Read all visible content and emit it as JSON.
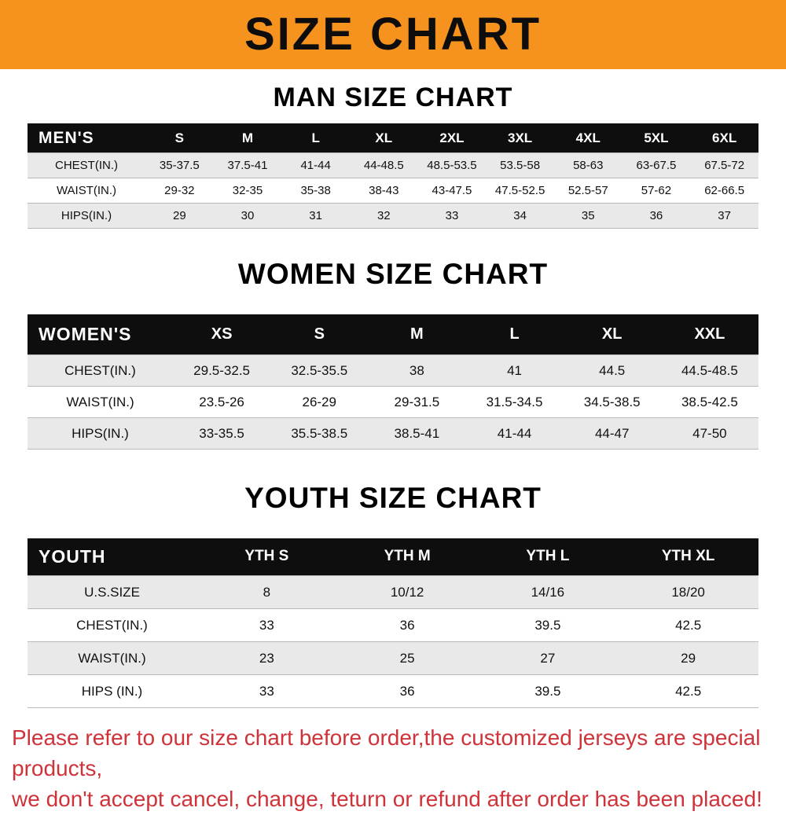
{
  "banner": {
    "title": "SIZE CHART",
    "bg_color": "#f6921e",
    "text_color": "#0d0d0d"
  },
  "sections": [
    {
      "title": "MAN SIZE CHART",
      "header_label": "MEN'S",
      "columns": [
        "S",
        "M",
        "L",
        "XL",
        "2XL",
        "3XL",
        "4XL",
        "5XL",
        "6XL"
      ],
      "rows": [
        {
          "label": "CHEST(IN.)",
          "values": [
            "35-37.5",
            "37.5-41",
            "41-44",
            "44-48.5",
            "48.5-53.5",
            "53.5-58",
            "58-63",
            "63-67.5",
            "67.5-72"
          ]
        },
        {
          "label": "WAIST(IN.)",
          "values": [
            "29-32",
            "32-35",
            "35-38",
            "38-43",
            "43-47.5",
            "47.5-52.5",
            "52.5-57",
            "57-62",
            "62-66.5"
          ]
        },
        {
          "label": "HIPS(IN.)",
          "values": [
            "29",
            "30",
            "31",
            "32",
            "33",
            "34",
            "35",
            "36",
            "37"
          ]
        }
      ]
    },
    {
      "title": "WOMEN SIZE CHART",
      "header_label": "WOMEN'S",
      "columns": [
        "XS",
        "S",
        "M",
        "L",
        "XL",
        "XXL"
      ],
      "rows": [
        {
          "label": "CHEST(IN.)",
          "values": [
            "29.5-32.5",
            "32.5-35.5",
            "38",
            "41",
            "44.5",
            "44.5-48.5"
          ]
        },
        {
          "label": "WAIST(IN.)",
          "values": [
            "23.5-26",
            "26-29",
            "29-31.5",
            "31.5-34.5",
            "34.5-38.5",
            "38.5-42.5"
          ]
        },
        {
          "label": "HIPS(IN.)",
          "values": [
            "33-35.5",
            "35.5-38.5",
            "38.5-41",
            "41-44",
            "44-47",
            "47-50"
          ]
        }
      ]
    },
    {
      "title": "YOUTH SIZE CHART",
      "header_label": "YOUTH",
      "columns": [
        "YTH S",
        "YTH M",
        "YTH L",
        "YTH XL"
      ],
      "rows": [
        {
          "label": "U.S.SIZE",
          "values": [
            "8",
            "10/12",
            "14/16",
            "18/20"
          ]
        },
        {
          "label": "CHEST(IN.)",
          "values": [
            "33",
            "36",
            "39.5",
            "42.5"
          ]
        },
        {
          "label": "WAIST(IN.)",
          "values": [
            "23",
            "25",
            "27",
            "29"
          ]
        },
        {
          "label": "HIPS (IN.)",
          "values": [
            "33",
            "36",
            "39.5",
            "42.5"
          ]
        }
      ]
    }
  ],
  "footer": {
    "line1": "Please refer to our size chart before order,the customized jerseys are special products,",
    "line2": "we don't accept cancel, change, teturn or refund after order has been placed!",
    "text_color": "#cf3339"
  }
}
